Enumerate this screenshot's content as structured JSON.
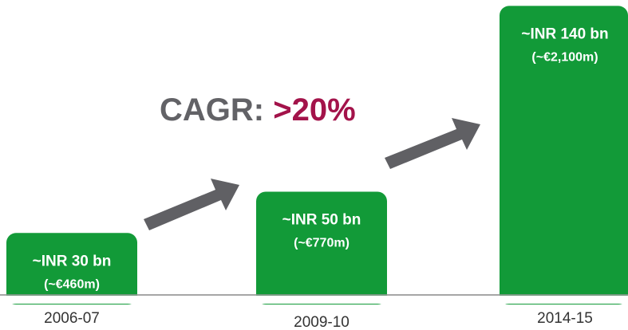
{
  "chart_data": {
    "type": "bar",
    "categories": [
      "2006-07",
      "2009-10",
      "2014-15"
    ],
    "values": [
      30,
      50,
      140
    ],
    "value_labels": [
      "~INR 30 bn",
      "~INR 50 bn",
      "~INR 140 bn"
    ],
    "secondary_labels": [
      "(~€460m)",
      "(~€770m)",
      "(~€2,100m)"
    ],
    "color": "#129a38",
    "annotation": {
      "label": "CAGR: ",
      "value": ">20%"
    }
  }
}
